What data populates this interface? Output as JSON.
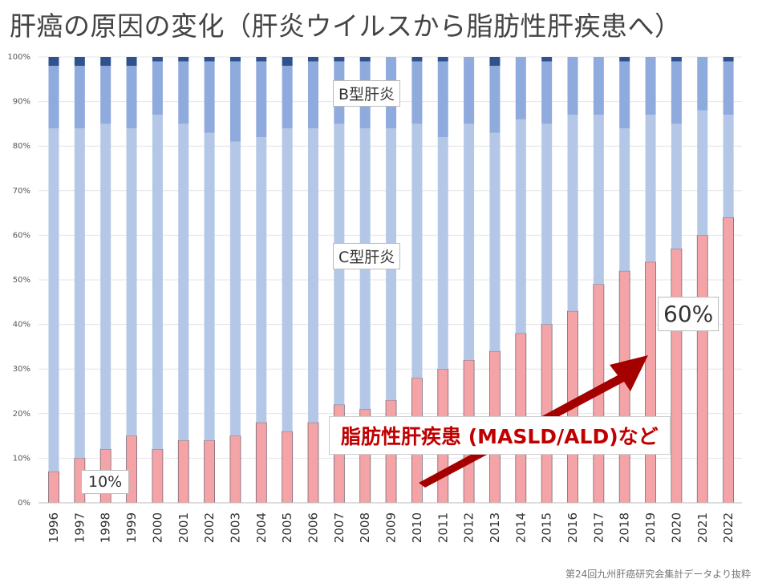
{
  "title": "肝癌の原因の変化（肝炎ウイルスから脂肪性肝疾患へ）",
  "source": "第24回九州肝癌研究会集計データより抜粋",
  "chart_data": {
    "type": "bar",
    "stacked": true,
    "categories": [
      "1996",
      "1997",
      "1998",
      "1999",
      "2000",
      "2001",
      "2002",
      "2003",
      "2004",
      "2005",
      "2006",
      "2007",
      "2008",
      "2009",
      "2010",
      "2011",
      "2012",
      "2013",
      "2014",
      "2015",
      "2016",
      "2017",
      "2018",
      "2019",
      "2020",
      "2021",
      "2022"
    ],
    "series": [
      {
        "name": "脂肪性肝疾患 (MASLD/ALD)など",
        "color": "#f4a3a6",
        "values": [
          7,
          10,
          12,
          15,
          12,
          14,
          14,
          15,
          18,
          16,
          18,
          22,
          21,
          23,
          28,
          30,
          32,
          34,
          38,
          40,
          43,
          49,
          52,
          54,
          57,
          60,
          64
        ]
      },
      {
        "name": "C型肝炎",
        "color": "#b4c7e7",
        "values": [
          77,
          74,
          73,
          69,
          75,
          71,
          69,
          66,
          64,
          68,
          66,
          63,
          63,
          61,
          57,
          52,
          53,
          49,
          48,
          45,
          44,
          38,
          32,
          33,
          28,
          28,
          23
        ]
      },
      {
        "name": "B型肝炎",
        "color": "#8faadc",
        "values": [
          14,
          14,
          13,
          14,
          12,
          14,
          16,
          18,
          17,
          14,
          15,
          14,
          15,
          16,
          14,
          17,
          15,
          15,
          14,
          14,
          13,
          13,
          15,
          13,
          14,
          12,
          12
        ]
      },
      {
        "color": "#2f528f",
        "values": [
          2,
          2,
          2,
          2,
          1,
          1,
          1,
          1,
          1,
          2,
          1,
          1,
          1,
          0,
          1,
          1,
          0,
          2,
          0,
          1,
          0,
          0,
          1,
          0,
          1,
          0,
          1
        ]
      }
    ],
    "yticks": [
      "0%",
      "10%",
      "20%",
      "30%",
      "40%",
      "50%",
      "60%",
      "70%",
      "80%",
      "90%",
      "100%"
    ],
    "ylim": [
      0,
      100
    ],
    "grid": true,
    "annotations": {
      "b_label": "B型肝炎",
      "c_label": "C型肝炎",
      "fatty_label": "脂肪性肝疾患 (MASLD/ALD)など",
      "start_pct": "10%",
      "end_pct": "60%"
    },
    "fatty_label_color": "#c00000",
    "arrow_color": "#a50000"
  }
}
